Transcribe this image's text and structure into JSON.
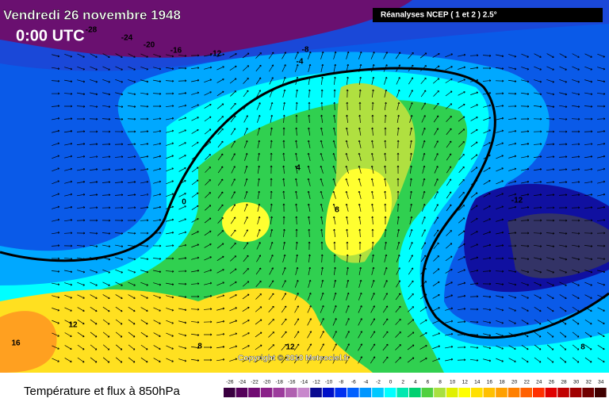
{
  "header": {
    "title": "Vendredi 26 novembre 1948",
    "time": "0:00 UTC",
    "source": "Réanalyses NCEP ( 1 et 2 ) 2.5°"
  },
  "contour_labels": [
    "-28",
    "-24",
    "-20",
    "-16",
    "-12",
    "-8",
    "-4",
    "4",
    "0",
    "8",
    "-12",
    "12",
    "16",
    "12",
    "8",
    "8"
  ],
  "copyright": "Copyright © 2010 Meteociel.fr",
  "footer": {
    "title": "Température et flux à 850hPa"
  },
  "legend": {
    "labels": [
      "-26",
      "-24",
      "-22",
      "-20",
      "-18",
      "-16",
      "-14",
      "-12",
      "-10",
      "-8",
      "-6",
      "-4",
      "-2",
      "0",
      "2",
      "4",
      "6",
      "8",
      "10",
      "12",
      "14",
      "16",
      "18",
      "20",
      "22",
      "24",
      "26",
      "28",
      "30",
      "32",
      "34"
    ],
    "colors": [
      "#3a0040",
      "#55005a",
      "#700a72",
      "#8a2088",
      "#9c3c9c",
      "#b060b0",
      "#c888cc",
      "#0a0a90",
      "#0010c8",
      "#0030f0",
      "#0060ff",
      "#0096ff",
      "#00c8ff",
      "#00ffff",
      "#00e8b0",
      "#00d070",
      "#50d040",
      "#a8e040",
      "#e0f000",
      "#ffff00",
      "#ffe000",
      "#ffc000",
      "#ffa000",
      "#ff8000",
      "#ff6000",
      "#ff3000",
      "#e00000",
      "#c00000",
      "#a00000",
      "#700000",
      "#400000"
    ]
  }
}
